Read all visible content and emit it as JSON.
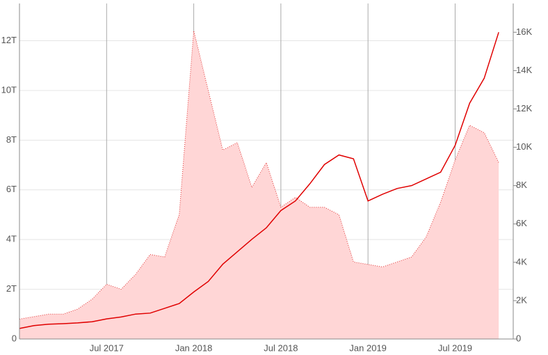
{
  "chart_data": {
    "type": "area-line",
    "x": [
      "2017-01",
      "2017-02",
      "2017-03",
      "2017-04",
      "2017-05",
      "2017-06",
      "2017-07",
      "2017-08",
      "2017-09",
      "2017-10",
      "2017-11",
      "2017-12",
      "2018-01",
      "2018-02",
      "2018-03",
      "2018-04",
      "2018-05",
      "2018-06",
      "2018-07",
      "2018-08",
      "2018-09",
      "2018-10",
      "2018-11",
      "2018-12",
      "2019-01",
      "2019-02",
      "2019-03",
      "2019-04",
      "2019-05",
      "2019-06",
      "2019-07",
      "2019-08",
      "2019-09",
      "2019-10"
    ],
    "xlim": [
      "2017-01",
      "2019-11"
    ],
    "xticks": [
      {
        "value": "2017-07",
        "label": "Jul 2017"
      },
      {
        "value": "2018-01",
        "label": "Jan 2018"
      },
      {
        "value": "2018-07",
        "label": "Jul 2018"
      },
      {
        "value": "2019-01",
        "label": "Jan 2019"
      },
      {
        "value": "2019-07",
        "label": "Jul 2019"
      }
    ],
    "ylim": [
      0,
      13.5
    ],
    "yticks": [
      0,
      {
        "value": 2,
        "label": "2T"
      },
      {
        "value": 4,
        "label": "4T"
      },
      {
        "value": 6,
        "label": "6T"
      },
      {
        "value": 8,
        "label": "8T"
      },
      {
        "value": 10,
        "label": "10T"
      },
      {
        "value": 12,
        "label": "12T"
      }
    ],
    "y2lim": [
      0,
      17.5
    ],
    "y2ticks": [
      0,
      {
        "value": 2,
        "label": "2K"
      },
      {
        "value": 4,
        "label": "4K"
      },
      {
        "value": 6,
        "label": "6K"
      },
      {
        "value": 8,
        "label": "8K"
      },
      {
        "value": 10,
        "label": "10K"
      },
      {
        "value": 12,
        "label": "12K"
      },
      {
        "value": 14,
        "label": "14K"
      },
      {
        "value": 16,
        "label": "16K"
      }
    ],
    "grid": true,
    "series": [
      {
        "kind": "area",
        "color": "#e03030",
        "fill": "#ffd6d6",
        "axis": "y",
        "values": [
          0.8,
          0.9,
          1.0,
          1.0,
          1.2,
          1.6,
          2.2,
          2.0,
          2.6,
          3.4,
          3.3,
          5.0,
          12.4,
          10.0,
          7.6,
          7.9,
          6.1,
          7.1,
          5.3,
          5.7,
          5.3,
          5.3,
          5.0,
          3.1,
          3.0,
          2.9,
          3.1,
          3.3,
          4.1,
          5.5,
          7.2,
          8.6,
          8.3,
          7.1
        ]
      },
      {
        "kind": "line",
        "color": "#e00000",
        "axis": "y2",
        "values": [
          0.55,
          0.7,
          0.77,
          0.8,
          0.84,
          0.9,
          1.05,
          1.15,
          1.3,
          1.35,
          1.6,
          1.85,
          2.45,
          3.0,
          3.9,
          4.55,
          5.2,
          5.8,
          6.7,
          7.2,
          8.1,
          9.1,
          9.6,
          9.4,
          7.2,
          7.55,
          7.85,
          8.0,
          8.35,
          8.7,
          10.1,
          12.3,
          13.6,
          16.0
        ]
      }
    ]
  }
}
